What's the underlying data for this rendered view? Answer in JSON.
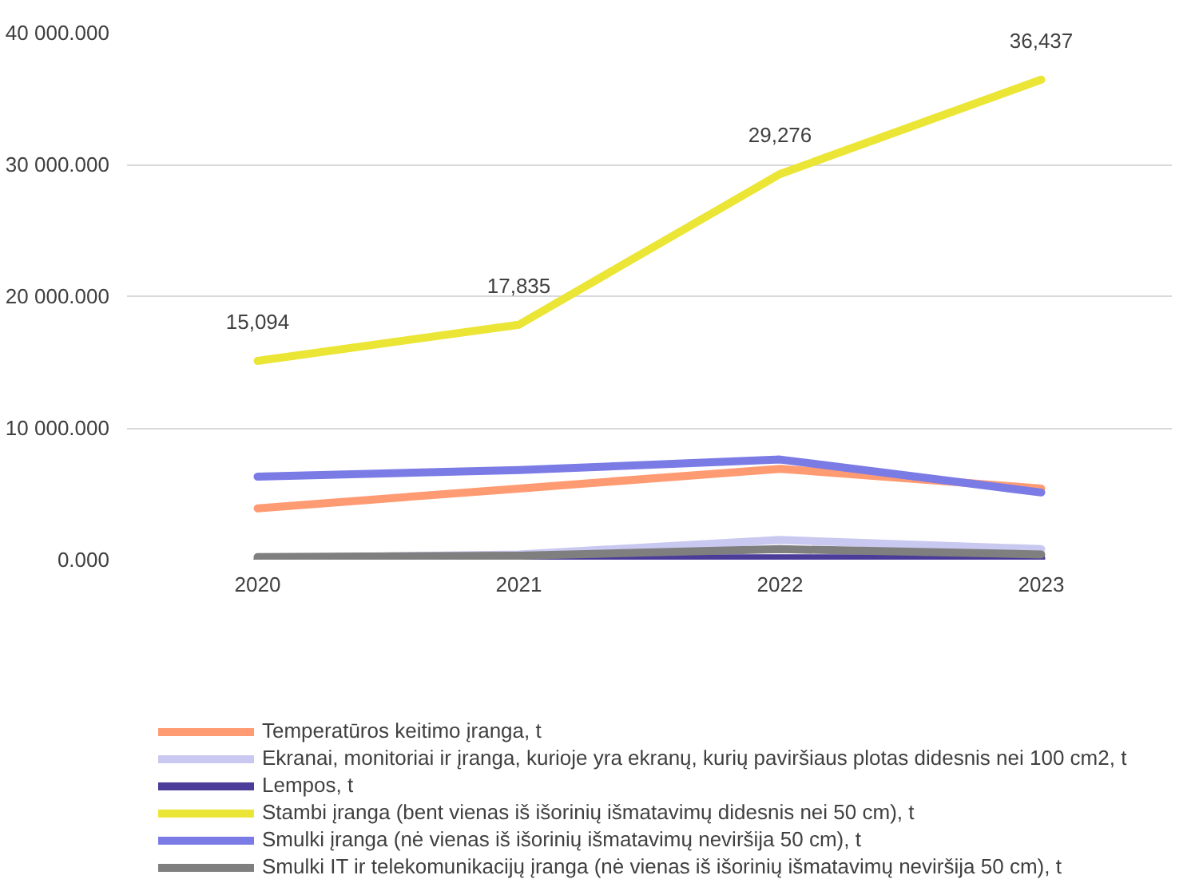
{
  "chart_data": {
    "type": "line",
    "categories": [
      "2020",
      "2021",
      "2022",
      "2023"
    ],
    "ylim": [
      0,
      40000
    ],
    "yticks": [
      {
        "value": 0,
        "label": "0.000"
      },
      {
        "value": 10000,
        "label": "10 000.000"
      },
      {
        "value": 20000,
        "label": "20 000.000"
      },
      {
        "value": 30000,
        "label": "30 000.000"
      },
      {
        "value": 40000,
        "label": "40 000.000"
      }
    ],
    "grid": "y",
    "legend": "bottom",
    "line_style": "solid",
    "marker": "none",
    "series": [
      {
        "name": "Temperatūros keitimo įranga, t",
        "color": "#ff9b73",
        "values": [
          3900,
          5400,
          6900,
          5400
        ]
      },
      {
        "name": "Ekranai, monitoriai ir įranga, kurioje yra ekranų, kurių paviršiaus plotas didesnis nei 100 cm2, t",
        "color": "#c9c8f0",
        "values": [
          100,
          400,
          1500,
          800
        ]
      },
      {
        "name": "Lempos, t",
        "color": "#4b3c9a",
        "values": [
          0,
          100,
          100,
          100
        ]
      },
      {
        "name": "Stambi įranga (bent vienas iš išorinių išmatavimų didesnis nei 50 cm), t",
        "color": "#ebe535",
        "values": [
          15094,
          17835,
          29276,
          36437
        ],
        "value_labels": [
          "15,094",
          "17,835",
          "29,276",
          "36,437"
        ]
      },
      {
        "name": "Smulki įranga (nė vienas iš išorinių išmatavimų neviršija 50 cm), t",
        "color": "#7b7be6",
        "values": [
          6300,
          6800,
          7600,
          5100
        ]
      },
      {
        "name": "Smulki IT ir telekomunikacijų įranga (nė vienas iš išorinių išmatavimų neviršija 50 cm), t",
        "color": "#7f7f7f",
        "values": [
          200,
          300,
          800,
          400
        ]
      }
    ]
  }
}
